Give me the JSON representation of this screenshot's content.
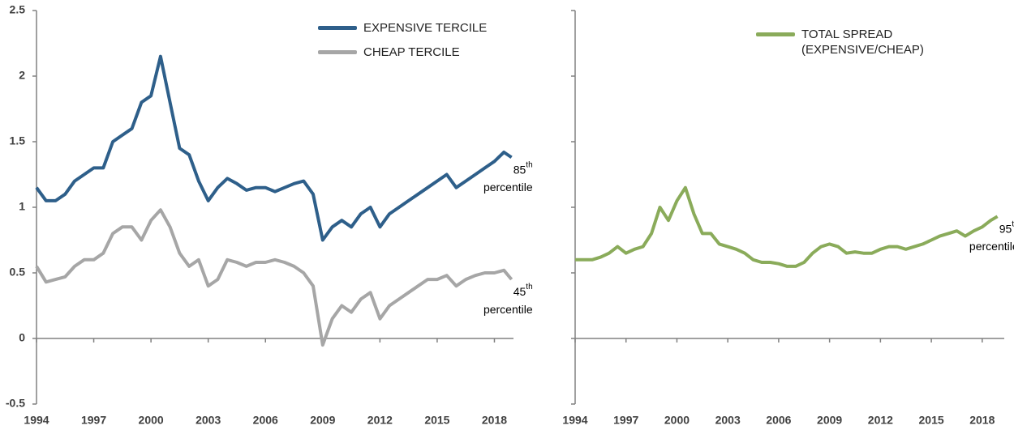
{
  "chart_data": [
    {
      "type": "line",
      "xlim": [
        1994,
        2019
      ],
      "ylim": [
        -0.5,
        2.5
      ],
      "xticks": [
        1994,
        1997,
        2000,
        2003,
        2006,
        2009,
        2012,
        2015,
        2018
      ],
      "yticks": [
        -0.5,
        0,
        0.5,
        1,
        1.5,
        2,
        2.5
      ],
      "ytick_labels": true,
      "legend": "upper right",
      "x": [
        1994,
        1994.5,
        1995,
        1995.5,
        1996,
        1996.5,
        1997,
        1997.5,
        1998,
        1998.5,
        1999,
        1999.5,
        2000,
        2000.5,
        2001,
        2001.5,
        2002,
        2002.5,
        2003,
        2003.5,
        2004,
        2004.5,
        2005,
        2005.5,
        2006,
        2006.5,
        2007,
        2007.5,
        2008,
        2008.5,
        2009,
        2009.5,
        2010,
        2010.5,
        2011,
        2011.5,
        2012,
        2012.5,
        2013,
        2013.5,
        2014,
        2014.5,
        2015,
        2015.5,
        2016,
        2016.5,
        2017,
        2017.5,
        2018,
        2018.5,
        2018.9
      ],
      "series": [
        {
          "name": "EXPENSIVE TERCILE",
          "color": "#2e5f8a",
          "values": [
            1.15,
            1.05,
            1.05,
            1.1,
            1.2,
            1.25,
            1.3,
            1.3,
            1.5,
            1.55,
            1.6,
            1.8,
            1.85,
            2.15,
            1.8,
            1.45,
            1.4,
            1.2,
            1.05,
            1.15,
            1.22,
            1.18,
            1.13,
            1.15,
            1.15,
            1.12,
            1.15,
            1.18,
            1.2,
            1.1,
            0.75,
            0.85,
            0.9,
            0.85,
            0.95,
            1.0,
            0.85,
            0.95,
            1.0,
            1.05,
            1.1,
            1.15,
            1.2,
            1.25,
            1.15,
            1.2,
            1.25,
            1.3,
            1.35,
            1.42,
            1.38
          ],
          "annotation": {
            "number": "85",
            "suffix": "th",
            "label": "percentile"
          }
        },
        {
          "name": "CHEAP TERCILE",
          "color": "#a6a6a6",
          "values": [
            0.55,
            0.43,
            0.45,
            0.47,
            0.55,
            0.6,
            0.6,
            0.65,
            0.8,
            0.85,
            0.85,
            0.75,
            0.9,
            0.98,
            0.85,
            0.65,
            0.55,
            0.6,
            0.4,
            0.45,
            0.6,
            0.58,
            0.55,
            0.58,
            0.58,
            0.6,
            0.58,
            0.55,
            0.5,
            0.4,
            -0.05,
            0.15,
            0.25,
            0.2,
            0.3,
            0.35,
            0.15,
            0.25,
            0.3,
            0.35,
            0.4,
            0.45,
            0.45,
            0.48,
            0.4,
            0.45,
            0.48,
            0.5,
            0.5,
            0.52,
            0.45
          ],
          "annotation": {
            "number": "45",
            "suffix": "th",
            "label": "percentile"
          }
        }
      ]
    },
    {
      "type": "line",
      "xlim": [
        1994,
        2019.3
      ],
      "ylim": [
        -0.5,
        2.5
      ],
      "xticks": [
        1994,
        1997,
        2000,
        2003,
        2006,
        2009,
        2012,
        2015,
        2018
      ],
      "yticks": [
        -0.5,
        0,
        0.5,
        1,
        1.5,
        2,
        2.5
      ],
      "ytick_labels": false,
      "legend": "upper center",
      "x": [
        1994,
        1994.5,
        1995,
        1995.5,
        1996,
        1996.5,
        1997,
        1997.5,
        1998,
        1998.5,
        1999,
        1999.5,
        2000,
        2000.5,
        2001,
        2001.5,
        2002,
        2002.5,
        2003,
        2003.5,
        2004,
        2004.5,
        2005,
        2005.5,
        2006,
        2006.5,
        2007,
        2007.5,
        2008,
        2008.5,
        2009,
        2009.5,
        2010,
        2010.5,
        2011,
        2011.5,
        2012,
        2012.5,
        2013,
        2013.5,
        2014,
        2014.5,
        2015,
        2015.5,
        2016,
        2016.5,
        2017,
        2017.5,
        2018,
        2018.5,
        2018.9
      ],
      "series": [
        {
          "name": "TOTAL SPREAD (EXPENSIVE/CHEAP)",
          "color": "#8aab5a",
          "values": [
            0.6,
            0.6,
            0.6,
            0.62,
            0.65,
            0.7,
            0.65,
            0.68,
            0.7,
            0.8,
            1.0,
            0.9,
            1.05,
            1.15,
            0.95,
            0.8,
            0.8,
            0.72,
            0.7,
            0.68,
            0.65,
            0.6,
            0.58,
            0.58,
            0.57,
            0.55,
            0.55,
            0.58,
            0.65,
            0.7,
            0.72,
            0.7,
            0.65,
            0.66,
            0.65,
            0.65,
            0.68,
            0.7,
            0.7,
            0.68,
            0.7,
            0.72,
            0.75,
            0.78,
            0.8,
            0.82,
            0.78,
            0.82,
            0.85,
            0.9,
            0.93
          ],
          "annotation": {
            "number": "95",
            "suffix": "th",
            "label": "percentile"
          }
        }
      ]
    }
  ]
}
